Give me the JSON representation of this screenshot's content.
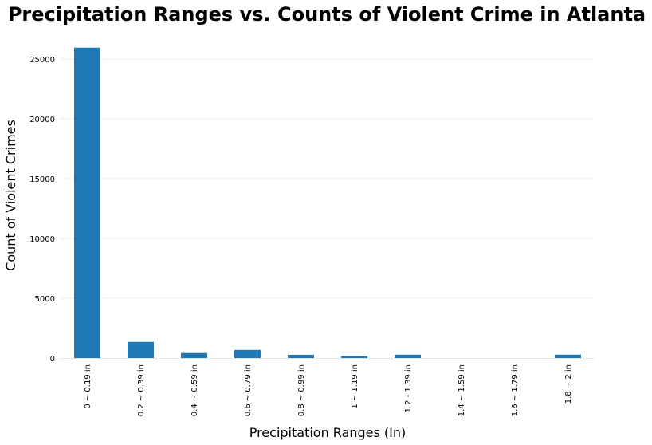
{
  "chart_data": {
    "type": "bar",
    "title": "Precipitation Ranges vs. Counts of Violent Crime in Atlanta",
    "xlabel": "Precipitation Ranges (In)",
    "ylabel": "Count of Violent Crimes",
    "categories": [
      "0 ~ 0.19 in",
      "0.2 ~ 0.39 in",
      "0.4 ~ 0.59 in",
      "0.6 ~ 0.79 in",
      "0.8 ~ 0.99 in",
      "1 ~ 1.19 in",
      "1.2 - 1.39 in",
      "1.4 ~ 1.59 in",
      "1.6 ~ 1.79 in",
      "1.8 ~ 2 in"
    ],
    "values": [
      25950,
      1350,
      420,
      680,
      270,
      150,
      280,
      0,
      0,
      280
    ],
    "ylim": [
      0,
      26000
    ],
    "yticks": [
      0,
      5000,
      10000,
      15000,
      20000,
      25000
    ],
    "grid": true,
    "bar_color": "#1f77b4",
    "grid_color": "#ebebeb"
  }
}
